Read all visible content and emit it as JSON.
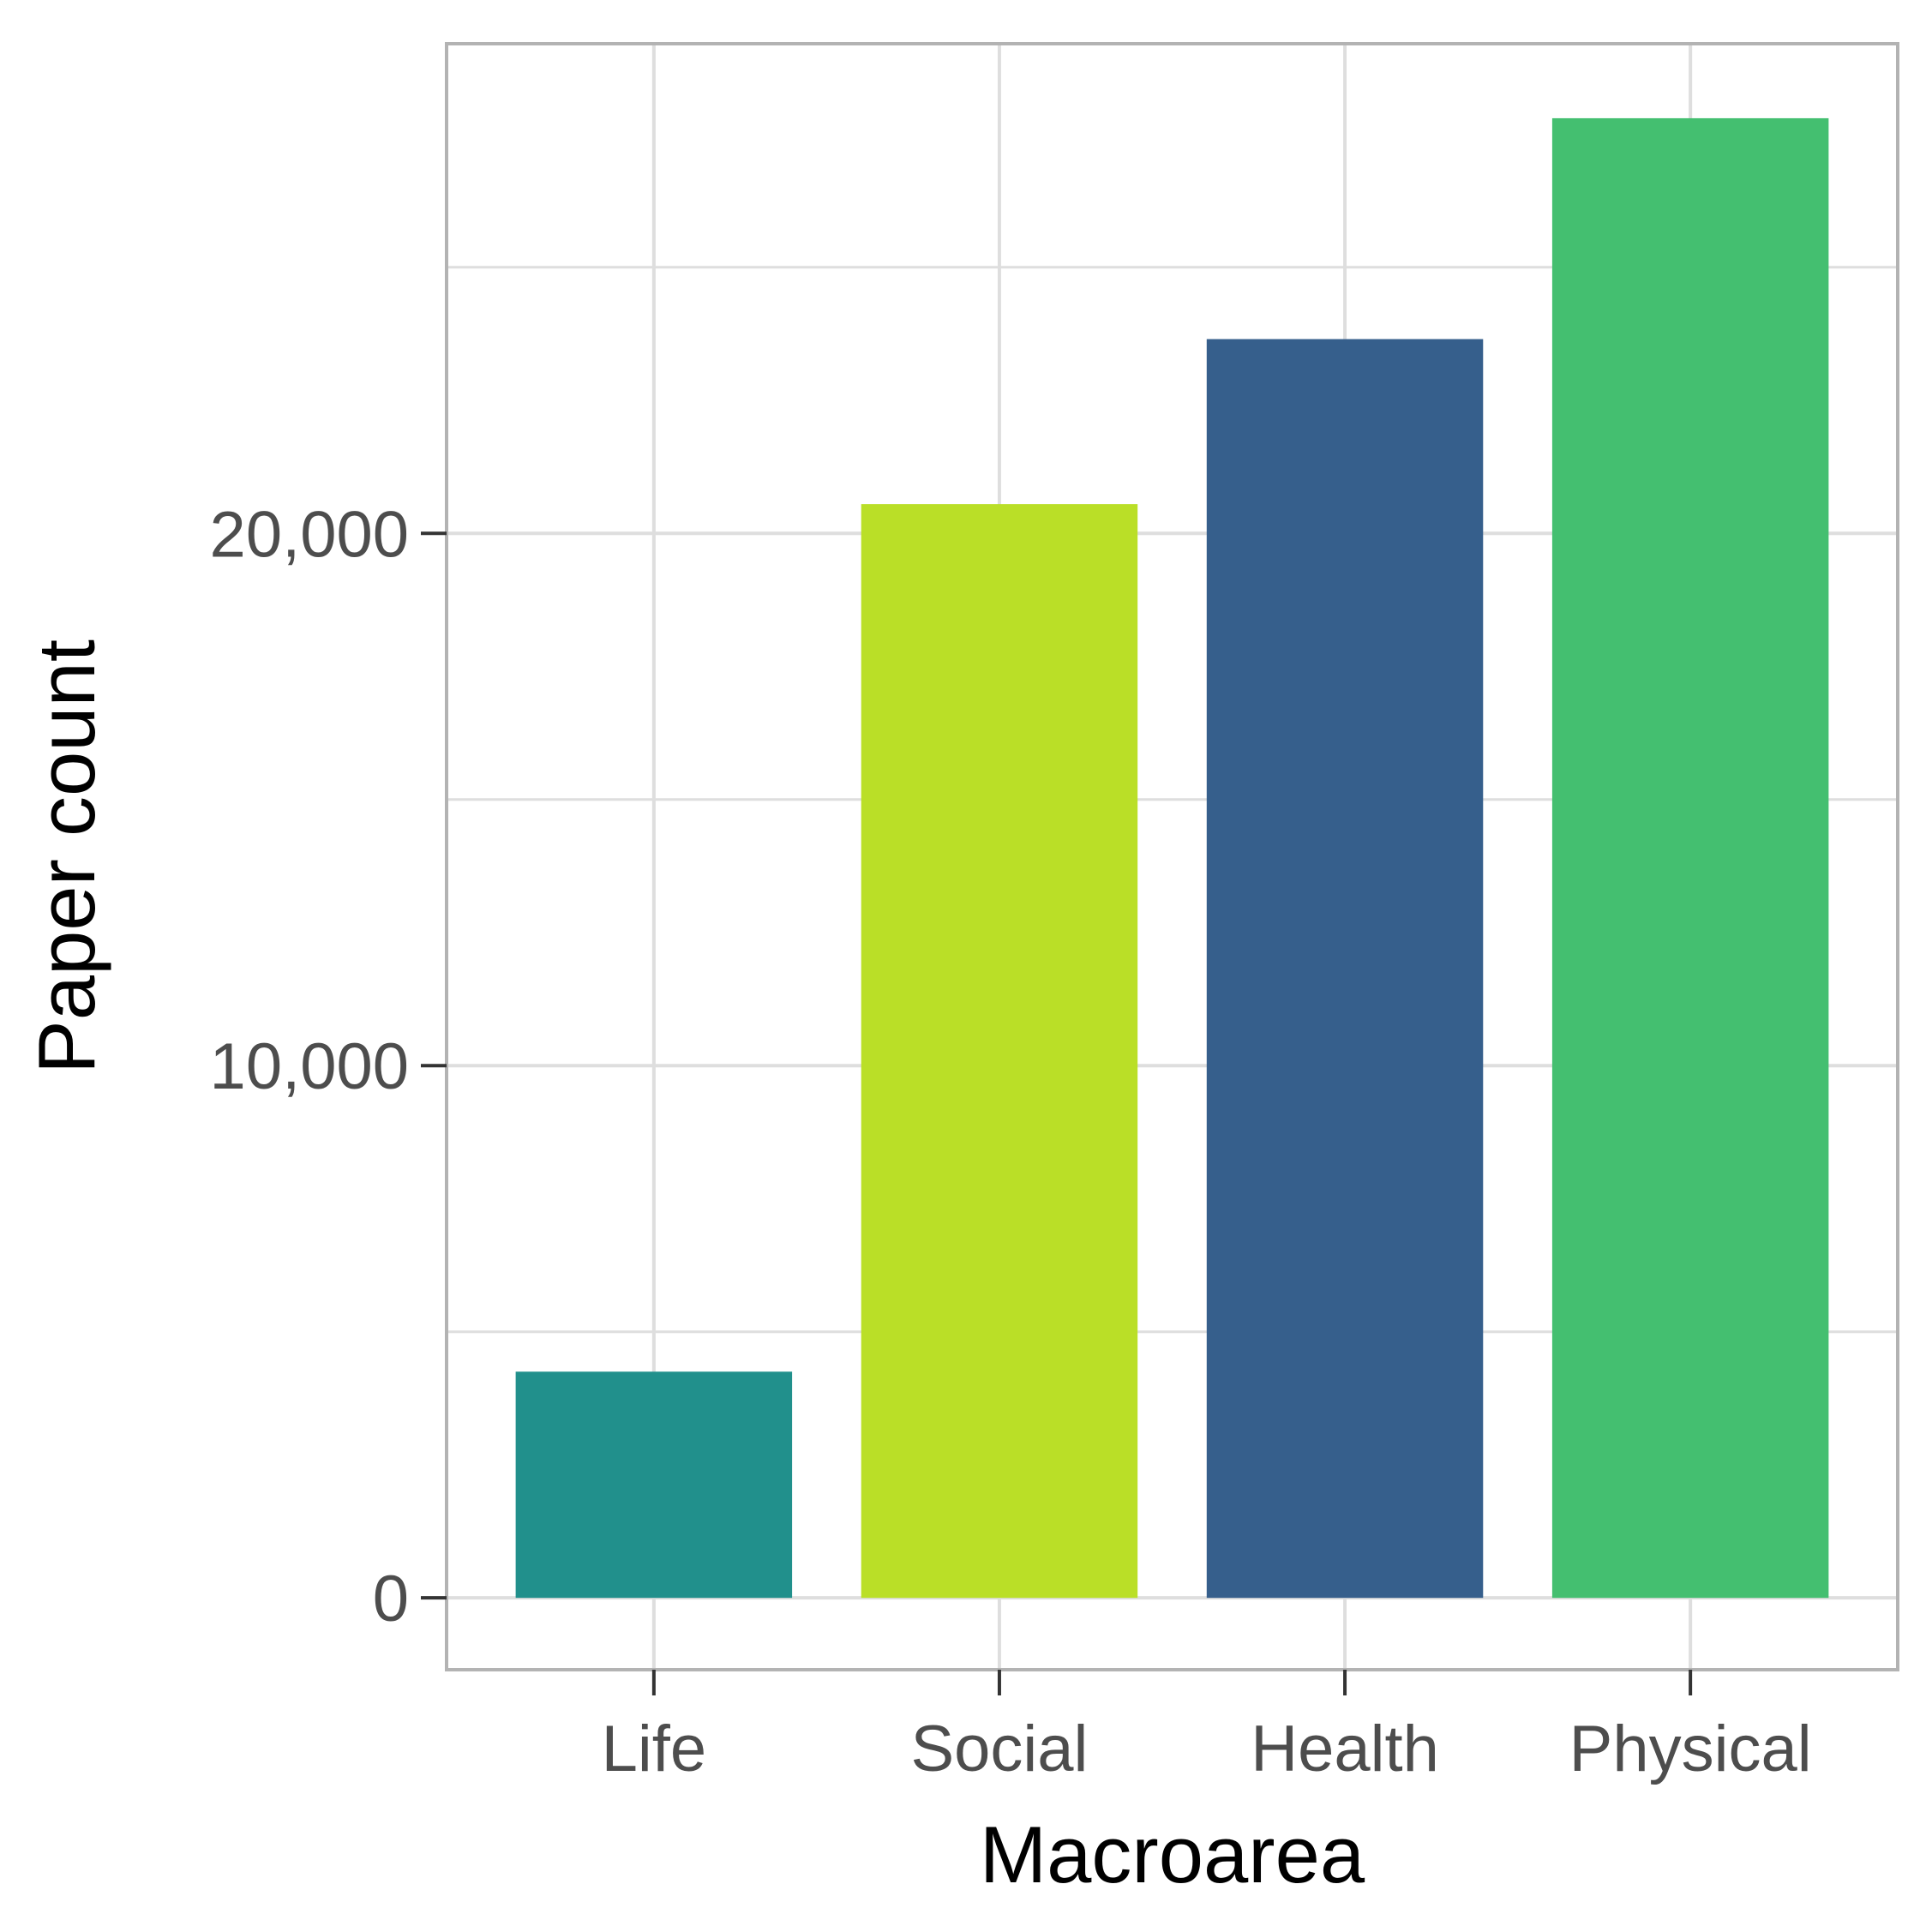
{
  "chart_data": {
    "type": "bar",
    "categories": [
      "Life",
      "Social",
      "Health",
      "Physical"
    ],
    "values": [
      4250,
      20550,
      23650,
      27800
    ],
    "colors": [
      "#21908C",
      "#BADF27",
      "#365F8C",
      "#44BF70"
    ],
    "title": "",
    "xlabel": "Macroarea",
    "ylabel": "Paper count",
    "ylim": [
      -1350,
      29200
    ],
    "yticks": [
      0,
      10000,
      20000
    ],
    "ytick_labels": [
      "0",
      "10,000",
      "20,000"
    ],
    "minor_yticks": [
      5000,
      15000,
      25000
    ],
    "grid": true,
    "legend": "none"
  },
  "style": {
    "panel_border": "#B3B3B3",
    "grid_color": "#DEDEDE",
    "tick_label_color": "#4D4D4D",
    "axis_title_color": "#000000"
  }
}
